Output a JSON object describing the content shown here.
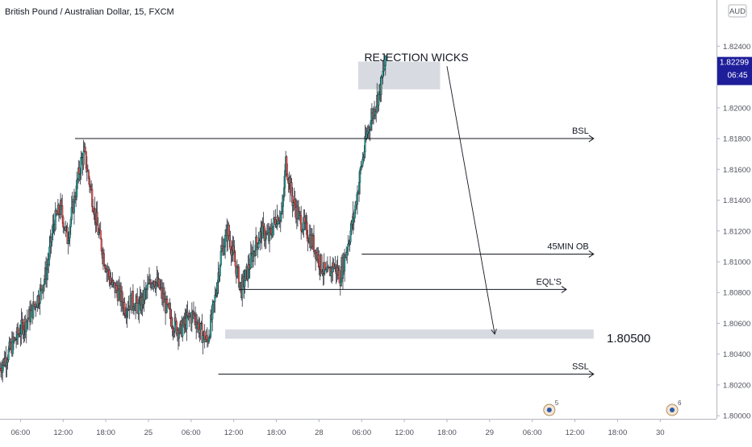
{
  "chart_data": {
    "type": "candlestick",
    "title": "British Pound / Australian Dollar, 15, FXCM",
    "currency": "AUD",
    "ylim": [
      1.7998,
      1.827
    ],
    "y_ticks": [
      "1.82400",
      "1.82200",
      "1.82000",
      "1.81800",
      "1.81600",
      "1.81400",
      "1.81200",
      "1.81000",
      "1.80800",
      "1.80600",
      "1.80400",
      "1.80200",
      "1.80000"
    ],
    "y_tick_values": [
      1.824,
      1.822,
      1.82,
      1.818,
      1.816,
      1.814,
      1.812,
      1.81,
      1.808,
      1.806,
      1.804,
      1.802,
      1.8
    ],
    "x_ticks": [
      "06:00",
      "12:00",
      "18:00",
      "25",
      "06:00",
      "12:00",
      "18:00",
      "28",
      "06:00",
      "12:00",
      "18:00",
      "29",
      "06:00",
      "12:00",
      "18:00",
      "30"
    ],
    "price_label": "1.82299",
    "price_value": 1.82299,
    "countdown_label": "06:45",
    "candle_up_color": "#26a69a",
    "candle_down_color": "#ef5350",
    "price_path": [
      [
        0,
        1.803
      ],
      [
        3,
        1.8042
      ],
      [
        6,
        1.8055
      ],
      [
        9,
        1.8065
      ],
      [
        12,
        1.808
      ],
      [
        14,
        1.8095
      ],
      [
        16,
        1.8125
      ],
      [
        18,
        1.8135
      ],
      [
        20,
        1.8115
      ],
      [
        22,
        1.814
      ],
      [
        24,
        1.8165
      ],
      [
        25,
        1.817
      ],
      [
        27,
        1.8145
      ],
      [
        29,
        1.812
      ],
      [
        31,
        1.81
      ],
      [
        33,
        1.8085
      ],
      [
        35,
        1.808
      ],
      [
        37,
        1.807
      ],
      [
        39,
        1.8075
      ],
      [
        41,
        1.807
      ],
      [
        43,
        1.808
      ],
      [
        45,
        1.809
      ],
      [
        47,
        1.8083
      ],
      [
        49,
        1.807
      ],
      [
        51,
        1.806
      ],
      [
        53,
        1.8055
      ],
      [
        55,
        1.8062
      ],
      [
        57,
        1.8066
      ],
      [
        59,
        1.8055
      ],
      [
        61,
        1.8048
      ],
      [
        63,
        1.8072
      ],
      [
        65,
        1.8105
      ],
      [
        67,
        1.812
      ],
      [
        69,
        1.81
      ],
      [
        71,
        1.8082
      ],
      [
        73,
        1.8095
      ],
      [
        75,
        1.811
      ],
      [
        77,
        1.812
      ],
      [
        79,
        1.8115
      ],
      [
        81,
        1.8128
      ],
      [
        83,
        1.8132
      ],
      [
        84,
        1.8165
      ],
      [
        86,
        1.814
      ],
      [
        88,
        1.8128
      ],
      [
        90,
        1.812
      ],
      [
        92,
        1.8112
      ],
      [
        94,
        1.81
      ],
      [
        96,
        1.809
      ],
      [
        98,
        1.8098
      ],
      [
        100,
        1.809
      ],
      [
        102,
        1.811
      ],
      [
        104,
        1.813
      ],
      [
        106,
        1.816
      ],
      [
        108,
        1.8185
      ],
      [
        110,
        1.82
      ],
      [
        112,
        1.8215
      ],
      [
        113,
        1.8228
      ]
    ],
    "time_span": [
      0,
      210
    ],
    "level_labels": [
      "BSL",
      "45MIN OB",
      "EQL'S",
      "SSL"
    ],
    "levels": [
      {
        "name": "BSL",
        "y": 1.818,
        "x0": 22,
        "x1": 174
      },
      {
        "name": "45MIN OB",
        "y": 1.8105,
        "x0": 106,
        "x1": 174
      },
      {
        "name": "EQL'S",
        "y": 1.8082,
        "x0": 70,
        "x1": 166
      },
      {
        "name": "SSL",
        "y": 1.8027,
        "x0": 64,
        "x1": 174
      }
    ],
    "zones": [
      {
        "y0": 1.8212,
        "y1": 1.823,
        "x0": 105,
        "x1": 129
      },
      {
        "y0": 1.805,
        "y1": 1.8056,
        "x0": 66,
        "x1": 174
      }
    ],
    "annotations": {
      "rejection": "REJECTION WICKS",
      "target": "1.80500"
    },
    "arrow": {
      "from": [
        131,
        1.8227
      ],
      "to": [
        145,
        1.8053
      ]
    },
    "event_markers": [
      {
        "label": "5",
        "x": 161
      },
      {
        "label": "6",
        "x": 197
      }
    ]
  }
}
